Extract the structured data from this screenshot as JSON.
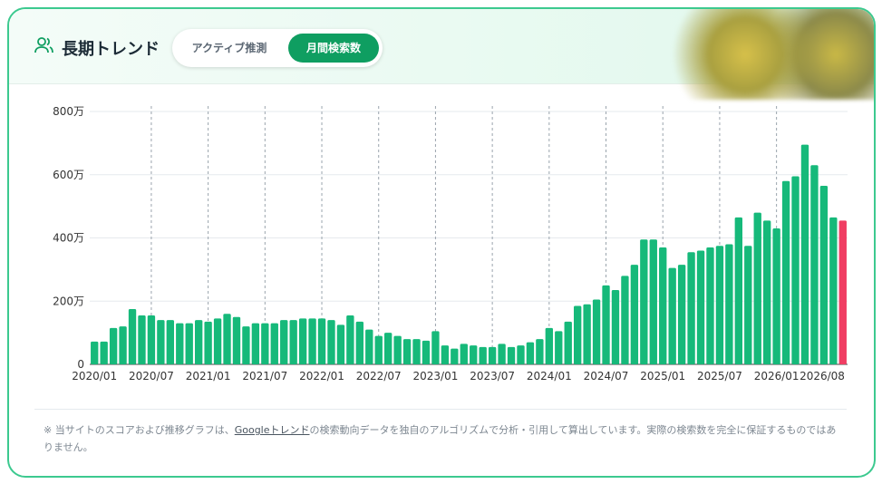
{
  "header": {
    "title": "長期トレンド",
    "tabs": [
      "アクティブ推測",
      "月間検索数"
    ],
    "active_tab": 1
  },
  "chart_data": {
    "type": "bar",
    "color": "#16b97a",
    "current_color": "#f03e63",
    "categories": [
      "2020/01",
      null,
      null,
      null,
      null,
      null,
      "2020/07",
      null,
      null,
      null,
      null,
      null,
      "2021/01",
      null,
      null,
      null,
      null,
      null,
      "2021/07",
      null,
      null,
      null,
      null,
      null,
      "2022/01",
      null,
      null,
      null,
      null,
      null,
      "2022/07",
      null,
      null,
      null,
      null,
      null,
      "2023/01",
      null,
      null,
      null,
      null,
      null,
      "2023/07",
      null,
      null,
      null,
      null,
      null,
      "2024/01",
      null,
      null,
      null,
      null,
      null,
      "2024/07",
      null,
      null,
      null,
      null,
      null,
      "2025/01",
      null,
      null,
      null,
      null,
      null,
      "2025/07",
      null,
      null,
      null,
      null,
      null,
      "2026/01",
      null,
      null,
      null,
      null,
      null,
      null,
      "2026/08"
    ],
    "values": [
      72,
      72,
      115,
      120,
      175,
      155,
      155,
      140,
      140,
      130,
      130,
      140,
      135,
      145,
      160,
      150,
      120,
      130,
      130,
      130,
      140,
      140,
      145,
      145,
      145,
      140,
      125,
      155,
      135,
      110,
      90,
      100,
      90,
      80,
      80,
      75,
      105,
      60,
      50,
      65,
      60,
      55,
      55,
      65,
      55,
      60,
      70,
      80,
      115,
      105,
      135,
      185,
      190,
      205,
      250,
      235,
      280,
      315,
      395,
      395,
      370,
      305,
      315,
      355,
      360,
      370,
      375,
      380,
      465,
      375,
      480,
      455,
      430,
      580,
      595,
      695,
      630,
      565,
      465,
      455
    ],
    "ylim": [
      0,
      800
    ],
    "yticks": [
      0,
      {
        "value": 200,
        "label": "200万"
      },
      {
        "value": 400,
        "label": "400万"
      },
      {
        "value": 600,
        "label": "600万"
      },
      {
        "value": 800,
        "label": "800万"
      }
    ],
    "grid": true
  },
  "footnote": {
    "before": "※ 当サイトのスコアおよび推移グラフは、",
    "link": "Googleトレンド",
    "after": "の検索動向データを独自のアルゴリズムで分析・引用して算出しています。実際の検索数を完全に保証するものではありません。"
  }
}
